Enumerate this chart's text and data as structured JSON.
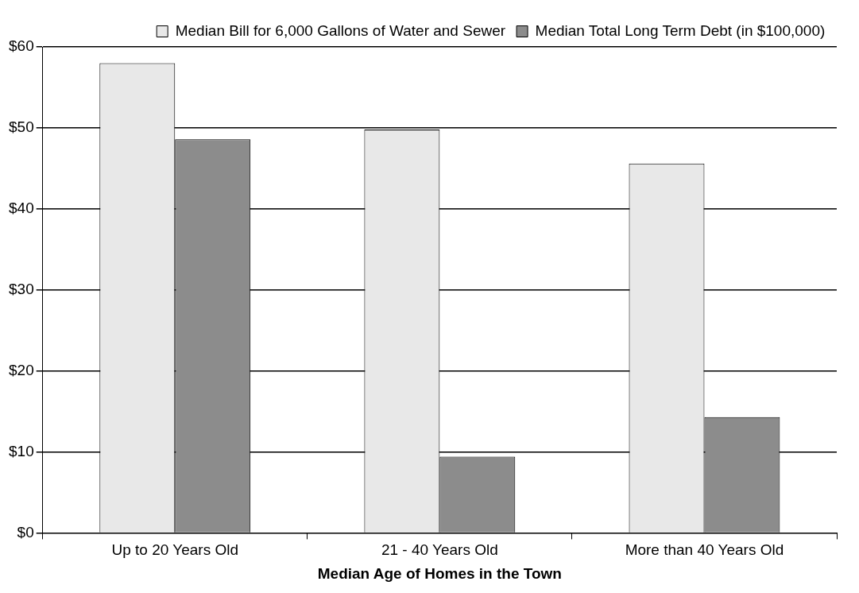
{
  "chart_data": {
    "type": "bar",
    "xlabel": "Median Age of Homes in the Town",
    "categories": [
      "Up to 20 Years Old",
      "21 - 40 Years Old",
      "More than 40 Years Old"
    ],
    "series": [
      {
        "name": "Median Bill for 6,000 Gallons of Water and Sewer",
        "color": "#e8e8e8",
        "values": [
          58,
          49.8,
          45.6
        ]
      },
      {
        "name": "Median Total Long Term Debt (in $100,000)",
        "color": "#8c8c8c",
        "values": [
          48.6,
          9.4,
          14.3
        ]
      }
    ],
    "ylim": [
      0,
      60
    ],
    "yticks": [
      {
        "value": 0,
        "label": "$0"
      },
      {
        "value": 10,
        "label": "$10"
      },
      {
        "value": 20,
        "label": "$20"
      },
      {
        "value": 30,
        "label": "$30"
      },
      {
        "value": 40,
        "label": "$40"
      },
      {
        "value": 50,
        "label": "$50"
      },
      {
        "value": 60,
        "label": "$60"
      }
    ],
    "grid": "y",
    "legend": "top right"
  }
}
